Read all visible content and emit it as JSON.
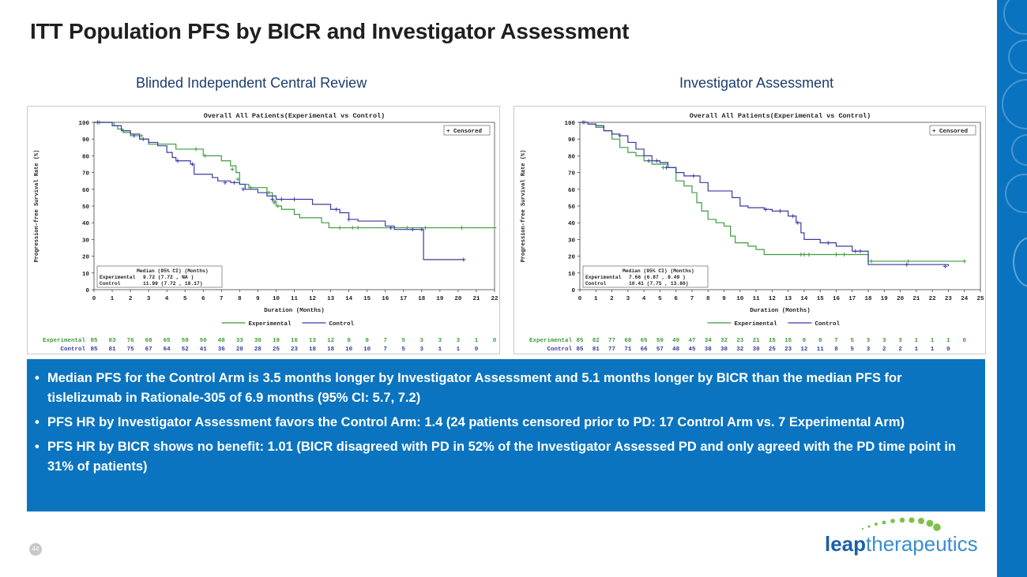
{
  "page": {
    "title": "ITT Population PFS by BICR and Investigator Assessment",
    "page_number": "44",
    "logo": {
      "part1": "leap",
      "part2": "therapeutics"
    }
  },
  "left_panel": {
    "subtitle": "Blinded Independent Central Review"
  },
  "right_panel": {
    "subtitle": "Investigator Assessment"
  },
  "bullets": [
    "Median PFS for the Control Arm is 3.5 months longer by Investigator Assessment and 5.1 months longer by BICR than the median PFS for tislelizumab in Rationale-305 of 6.9 months (95% CI: 5.7, 7.2)",
    "PFS HR by Investigator Assessment favors the Control Arm: 1.4 (24 patients censored prior to PD: 17 Control Arm vs. 7 Experimental Arm)",
    "PFS HR by BICR shows no benefit: 1.01 (BICR disagreed with PD in 52% of the Investigator Assessed PD and only agreed with the PD time point in 31% of patients)"
  ],
  "colors": {
    "experimental": "#3f9b3f",
    "control": "#3a3aa0",
    "accent": "#0a74c0"
  },
  "chart_data": [
    {
      "type": "line",
      "title": "Overall All Patients(Experimental vs Control)",
      "xlabel": "Duration (Months)",
      "ylabel": "Progression-free Survival Rate (%)",
      "xlim": [
        0,
        22
      ],
      "ylim": [
        0,
        100
      ],
      "xticks": [
        "0",
        "1",
        "2",
        "3",
        "4",
        "5",
        "6",
        "7",
        "8",
        "9",
        "10",
        "11",
        "12",
        "13",
        "14",
        "15",
        "16",
        "17",
        "18",
        "19",
        "20",
        "21",
        "22"
      ],
      "yticks": [
        "0",
        "10",
        "20",
        "30",
        "40",
        "50",
        "60",
        "70",
        "80",
        "90",
        "100"
      ],
      "censored_legend": "+ Censored",
      "median_table": {
        "header": "Median (95% CI) (Months)",
        "rows": [
          {
            "label": "Experimental",
            "value": "9.72  (7.72 , NA   )"
          },
          {
            "label": "Control",
            "value": "11.99 (7.72 , 18.17)"
          }
        ]
      },
      "legend": [
        "Experimental",
        "Control"
      ],
      "series": [
        {
          "name": "Experimental",
          "points": [
            [
              0,
              100
            ],
            [
              0.5,
              100
            ],
            [
              1.1,
              98
            ],
            [
              1.3,
              96
            ],
            [
              1.6,
              94
            ],
            [
              2,
              92
            ],
            [
              2.5,
              90
            ],
            [
              3,
              87
            ],
            [
              3.5,
              87
            ],
            [
              4,
              87
            ],
            [
              4.5,
              84
            ],
            [
              5.5,
              84
            ],
            [
              6,
              80
            ],
            [
              7,
              77
            ],
            [
              7.5,
              74
            ],
            [
              7.8,
              70
            ],
            [
              8,
              63
            ],
            [
              8.5,
              61
            ],
            [
              9.5,
              58
            ],
            [
              9.8,
              53
            ],
            [
              10,
              50
            ],
            [
              10.3,
              48
            ],
            [
              11,
              45
            ],
            [
              11.3,
              43
            ],
            [
              12,
              43
            ],
            [
              12.5,
              40
            ],
            [
              12.9,
              37
            ],
            [
              14,
              37
            ],
            [
              15,
              37
            ],
            [
              16,
              37
            ],
            [
              17,
              37
            ],
            [
              18,
              37
            ],
            [
              19,
              37
            ],
            [
              20,
              37
            ],
            [
              21,
              37
            ],
            [
              22,
              37
            ]
          ],
          "censored": [
            [
              0.3,
              100
            ],
            [
              2.6,
              92
            ],
            [
              5.6,
              84
            ],
            [
              6.1,
              80
            ],
            [
              7.6,
              72
            ],
            [
              7.9,
              66
            ],
            [
              8.6,
              61
            ],
            [
              9.6,
              58
            ],
            [
              9.9,
              52
            ],
            [
              10.1,
              50
            ],
            [
              13.5,
              37
            ],
            [
              14.2,
              37
            ],
            [
              14.5,
              37
            ],
            [
              16.3,
              37
            ],
            [
              17.2,
              37
            ],
            [
              18.2,
              37
            ],
            [
              20.2,
              37
            ],
            [
              22,
              37
            ]
          ]
        },
        {
          "name": "Control",
          "points": [
            [
              0,
              100
            ],
            [
              1,
              98
            ],
            [
              1.5,
              95
            ],
            [
              2,
              93
            ],
            [
              2.5,
              90
            ],
            [
              3,
              88
            ],
            [
              3.5,
              86
            ],
            [
              4,
              82
            ],
            [
              4.3,
              79
            ],
            [
              4.5,
              77
            ],
            [
              5.3,
              75
            ],
            [
              5.5,
              69
            ],
            [
              6.5,
              67
            ],
            [
              6.8,
              65
            ],
            [
              7.5,
              64
            ],
            [
              8,
              63
            ],
            [
              8.3,
              60
            ],
            [
              9,
              58
            ],
            [
              9.5,
              56
            ],
            [
              10,
              54
            ],
            [
              11,
              54
            ],
            [
              12,
              51
            ],
            [
              13,
              48
            ],
            [
              13.5,
              46
            ],
            [
              14,
              42
            ],
            [
              14.5,
              41
            ],
            [
              15.5,
              41
            ],
            [
              16,
              38
            ],
            [
              16.5,
              36
            ],
            [
              17,
              36
            ],
            [
              18,
              36
            ],
            [
              18.1,
              18
            ],
            [
              20.3,
              18
            ]
          ],
          "censored": [
            [
              0.2,
              100
            ],
            [
              2.2,
              92
            ],
            [
              2.7,
              90
            ],
            [
              4.6,
              77
            ],
            [
              5.4,
              75
            ],
            [
              7.2,
              64
            ],
            [
              7.7,
              64
            ],
            [
              8.2,
              60
            ],
            [
              9.8,
              54
            ],
            [
              10.3,
              54
            ],
            [
              11,
              54
            ],
            [
              13.3,
              48
            ],
            [
              14,
              42
            ],
            [
              16.3,
              37
            ],
            [
              17.5,
              36
            ],
            [
              18,
              36
            ],
            [
              20.3,
              18
            ]
          ]
        }
      ],
      "at_risk": {
        "Experimental": [
          "85",
          "83",
          "76",
          "68",
          "65",
          "59",
          "50",
          "48",
          "33",
          "30",
          "19",
          "16",
          "13",
          "12",
          "9",
          "9",
          "7",
          "5",
          "3",
          "3",
          "3",
          "1",
          "0"
        ],
        "Control": [
          "85",
          "81",
          "75",
          "67",
          "64",
          "52",
          "41",
          "36",
          "28",
          "28",
          "25",
          "23",
          "18",
          "18",
          "10",
          "10",
          "7",
          "5",
          "3",
          "1",
          "1",
          "0"
        ]
      }
    },
    {
      "type": "line",
      "title": "Overall All Patients(Experimental vs Control)",
      "xlabel": "Duration (Months)",
      "ylabel": "Progression-free Survival Rate (%)",
      "xlim": [
        0,
        25
      ],
      "ylim": [
        0,
        100
      ],
      "xticks": [
        "0",
        "1",
        "2",
        "3",
        "4",
        "5",
        "6",
        "7",
        "8",
        "9",
        "10",
        "11",
        "12",
        "13",
        "14",
        "15",
        "16",
        "17",
        "18",
        "19",
        "20",
        "21",
        "22",
        "23",
        "24",
        "25"
      ],
      "yticks": [
        "0",
        "10",
        "20",
        "30",
        "40",
        "50",
        "60",
        "70",
        "80",
        "90",
        "100"
      ],
      "censored_legend": "+ Censored",
      "median_table": {
        "header": "Median (95% CI) (Months)",
        "rows": [
          {
            "label": "Experimental",
            "value": "7.66  (6.87 , 9.49 )"
          },
          {
            "label": "Control",
            "value": "10.41 (7.75 , 13.80)"
          }
        ]
      },
      "legend": [
        "Experimental",
        "Control"
      ],
      "series": [
        {
          "name": "Experimental",
          "points": [
            [
              0,
              100
            ],
            [
              0.5,
              99
            ],
            [
              1,
              97
            ],
            [
              1.5,
              95
            ],
            [
              2,
              90
            ],
            [
              2.5,
              85
            ],
            [
              3,
              82
            ],
            [
              3.5,
              80
            ],
            [
              4,
              77
            ],
            [
              4.5,
              75
            ],
            [
              5.5,
              73
            ],
            [
              6,
              65
            ],
            [
              6.5,
              62
            ],
            [
              7,
              58
            ],
            [
              7.3,
              52
            ],
            [
              7.6,
              47
            ],
            [
              8,
              42
            ],
            [
              8.5,
              40
            ],
            [
              9,
              38
            ],
            [
              9.4,
              32
            ],
            [
              9.7,
              28
            ],
            [
              10.5,
              26
            ],
            [
              11,
              24
            ],
            [
              11.5,
              21
            ],
            [
              12.5,
              21
            ],
            [
              14,
              21
            ],
            [
              16,
              21
            ],
            [
              17,
              21
            ],
            [
              18,
              17
            ],
            [
              19,
              17
            ],
            [
              20,
              17
            ],
            [
              22,
              17
            ],
            [
              24,
              17
            ]
          ],
          "censored": [
            [
              0.3,
              100
            ],
            [
              5.2,
              73
            ],
            [
              13.8,
              21
            ],
            [
              14,
              21
            ],
            [
              14.3,
              21
            ],
            [
              16,
              21
            ],
            [
              16.5,
              21
            ],
            [
              18.2,
              17
            ],
            [
              20.5,
              17
            ],
            [
              24,
              17
            ]
          ]
        },
        {
          "name": "Control",
          "points": [
            [
              0,
              100
            ],
            [
              0.5,
              99
            ],
            [
              1,
              98
            ],
            [
              1.5,
              95
            ],
            [
              2,
              93
            ],
            [
              2.5,
              92
            ],
            [
              3,
              88
            ],
            [
              3.5,
              84
            ],
            [
              4,
              80
            ],
            [
              4.5,
              77
            ],
            [
              5,
              76
            ],
            [
              5.5,
              73
            ],
            [
              6,
              70
            ],
            [
              6.5,
              68
            ],
            [
              7,
              68
            ],
            [
              7.5,
              64
            ],
            [
              8,
              59
            ],
            [
              9,
              59
            ],
            [
              9.5,
              55
            ],
            [
              10,
              50
            ],
            [
              10.5,
              49
            ],
            [
              11,
              49
            ],
            [
              11.5,
              48
            ],
            [
              12,
              47
            ],
            [
              13,
              44
            ],
            [
              13.5,
              40
            ],
            [
              13.8,
              34
            ],
            [
              14,
              30
            ],
            [
              15,
              28
            ],
            [
              16,
              26
            ],
            [
              17,
              23
            ],
            [
              18,
              15
            ],
            [
              20,
              15
            ],
            [
              22,
              15
            ],
            [
              23,
              14
            ]
          ],
          "censored": [
            [
              0.2,
              100
            ],
            [
              2.5,
              92
            ],
            [
              4.3,
              77
            ],
            [
              4.8,
              77
            ],
            [
              5.4,
              73
            ],
            [
              7.1,
              68
            ],
            [
              11.6,
              48
            ],
            [
              12.5,
              47
            ],
            [
              13.3,
              44
            ],
            [
              13.6,
              40
            ],
            [
              15.5,
              28
            ],
            [
              17.2,
              23
            ],
            [
              17.5,
              23
            ],
            [
              20.4,
              15
            ],
            [
              22.8,
              14
            ]
          ]
        }
      ],
      "at_risk": {
        "Experimental": [
          "85",
          "82",
          "77",
          "68",
          "65",
          "59",
          "49",
          "47",
          "34",
          "32",
          "23",
          "21",
          "15",
          "15",
          "9",
          "9",
          "7",
          "5",
          "3",
          "3",
          "3",
          "1",
          "1",
          "1",
          "0"
        ],
        "Control": [
          "85",
          "81",
          "77",
          "71",
          "66",
          "57",
          "48",
          "45",
          "38",
          "38",
          "32",
          "30",
          "25",
          "23",
          "12",
          "11",
          "8",
          "5",
          "3",
          "2",
          "2",
          "1",
          "1",
          "0"
        ]
      }
    }
  ]
}
